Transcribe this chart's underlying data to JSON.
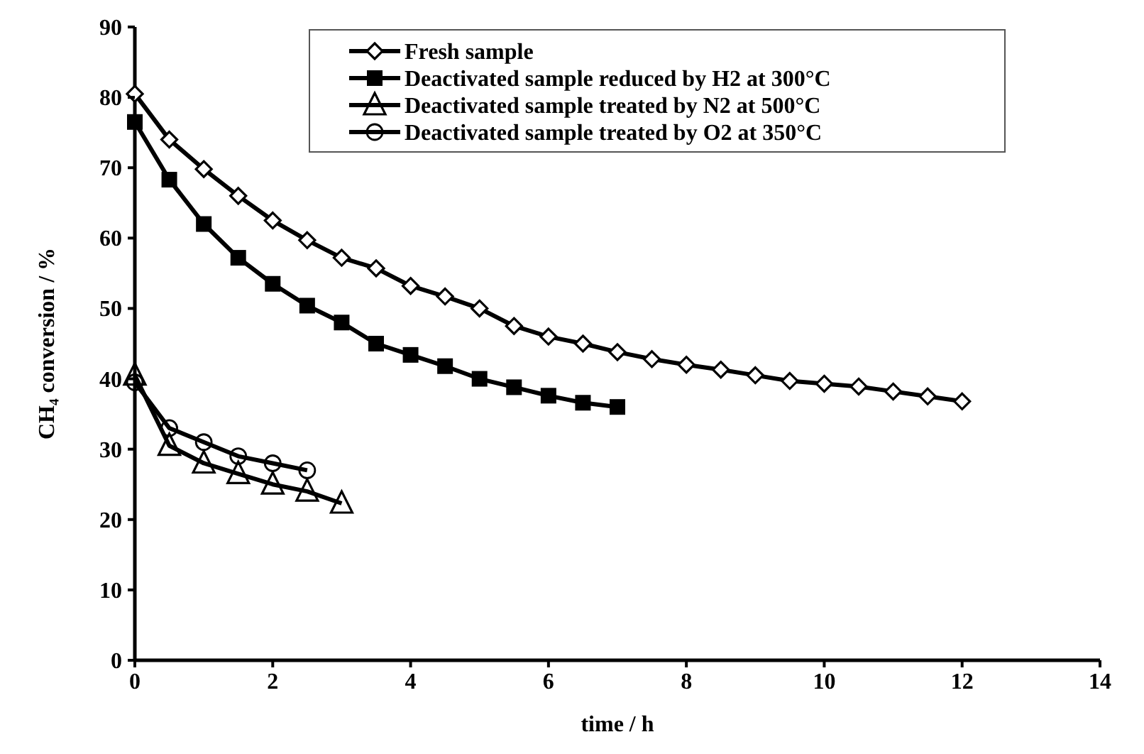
{
  "chart_data": {
    "type": "line",
    "xlabel": "time / h",
    "ylabel": "CH₄ conversion / %",
    "xlim": [
      0,
      14
    ],
    "xticks": [
      0,
      2,
      4,
      6,
      8,
      10,
      12,
      14
    ],
    "ylim": [
      0,
      90
    ],
    "yticks": [
      0,
      10,
      20,
      30,
      40,
      50,
      60,
      70,
      80,
      90
    ],
    "grid": false,
    "legend": "top right",
    "line_style": "solid",
    "series": [
      {
        "name": "Fresh sample",
        "color": "#000000",
        "marker": "diamond",
        "x": [
          0,
          0.5,
          1,
          1.5,
          2,
          2.5,
          3,
          3.5,
          4,
          4.5,
          5,
          5.5,
          6,
          6.5,
          7,
          7.5,
          8,
          8.5,
          9,
          9.5,
          10,
          10.5,
          11,
          11.5,
          12
        ],
        "values": [
          80.5,
          74,
          69.8,
          66,
          62.5,
          59.7,
          57.2,
          55.7,
          53.2,
          51.7,
          50,
          47.5,
          46,
          45,
          43.8,
          42.8,
          42,
          41.3,
          40.5,
          39.7,
          39.3,
          38.9,
          38.2,
          37.5,
          36.8
        ]
      },
      {
        "name": "Deactivated sample reduced by H2 at 300°C",
        "color": "#000000",
        "marker": "square",
        "x": [
          0,
          0.5,
          1,
          1.5,
          2,
          2.5,
          3,
          3.5,
          4,
          4.5,
          5,
          5.5,
          6,
          6.5,
          7
        ],
        "values": [
          76.5,
          68.3,
          62,
          57.2,
          53.5,
          50.4,
          48,
          45,
          43.4,
          41.8,
          40,
          38.8,
          37.6,
          36.6,
          36
        ]
      },
      {
        "name": "Deactivated sample treated by N2 at 500°C",
        "color": "#000000",
        "marker": "triangle",
        "x": [
          0,
          0.5,
          1,
          1.5,
          2,
          2.5,
          3
        ],
        "values": [
          40.5,
          30.5,
          28,
          26.5,
          25,
          24,
          22.3
        ]
      },
      {
        "name": "Deactivated sample treated by O2 at 350°C",
        "color": "#000000",
        "marker": "circle",
        "x": [
          0,
          0.5,
          1,
          1.5,
          2,
          2.5
        ],
        "values": [
          39.5,
          33,
          31,
          29,
          28,
          27
        ]
      }
    ]
  }
}
